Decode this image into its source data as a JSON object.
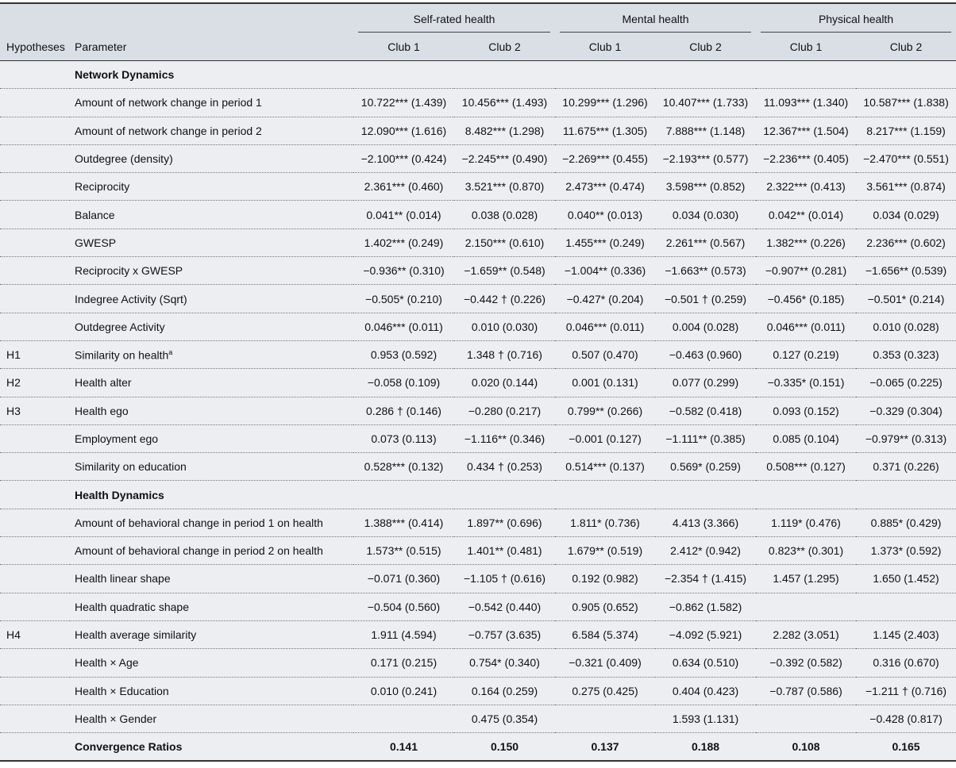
{
  "header": {
    "hypotheses": "Hypotheses",
    "parameter": "Parameter",
    "groups": [
      {
        "label": "Self-rated health",
        "clubs": [
          "Club 1",
          "Club 2"
        ]
      },
      {
        "label": "Mental health",
        "clubs": [
          "Club 1",
          "Club 2"
        ]
      },
      {
        "label": "Physical health",
        "clubs": [
          "Club 1",
          "Club 2"
        ]
      }
    ]
  },
  "table": {
    "rows": [
      {
        "section": "Network Dynamics"
      },
      {
        "hyp": null,
        "param": "Amount of network change in period 1",
        "values": [
          "10.722*** (1.439)",
          "10.456*** (1.493)",
          "10.299*** (1.296)",
          "10.407*** (1.733)",
          "11.093*** (1.340)",
          "10.587*** (1.838)"
        ]
      },
      {
        "hyp": null,
        "param": "Amount of network change in period 2",
        "values": [
          "12.090*** (1.616)",
          "8.482*** (1.298)",
          "11.675*** (1.305)",
          "7.888*** (1.148)",
          "12.367*** (1.504)",
          "8.217*** (1.159)"
        ]
      },
      {
        "hyp": null,
        "param": "Outdegree (density)",
        "values": [
          "−2.100*** (0.424)",
          "−2.245*** (0.490)",
          "−2.269*** (0.455)",
          "−2.193*** (0.577)",
          "−2.236*** (0.405)",
          "−2.470*** (0.551)"
        ]
      },
      {
        "hyp": null,
        "param": "Reciprocity",
        "values": [
          "2.361*** (0.460)",
          "3.521*** (0.870)",
          "2.473*** (0.474)",
          "3.598*** (0.852)",
          "2.322*** (0.413)",
          "3.561*** (0.874)"
        ]
      },
      {
        "hyp": null,
        "param": "Balance",
        "values": [
          "0.041** (0.014)",
          "0.038 (0.028)",
          "0.040** (0.013)",
          "0.034 (0.030)",
          "0.042** (0.014)",
          "0.034 (0.029)"
        ]
      },
      {
        "hyp": null,
        "param": "GWESP",
        "values": [
          "1.402*** (0.249)",
          "2.150*** (0.610)",
          "1.455*** (0.249)",
          "2.261*** (0.567)",
          "1.382*** (0.226)",
          "2.236*** (0.602)"
        ]
      },
      {
        "hyp": null,
        "param": "Reciprocity x GWESP",
        "values": [
          "−0.936** (0.310)",
          "−1.659** (0.548)",
          "−1.004** (0.336)",
          "−1.663** (0.573)",
          "−0.907** (0.281)",
          "−1.656** (0.539)"
        ]
      },
      {
        "hyp": null,
        "param": "Indegree Activity (Sqrt)",
        "values": [
          "−0.505* (0.210)",
          "−0.442 † (0.226)",
          "−0.427* (0.204)",
          "−0.501 † (0.259)",
          "−0.456* (0.185)",
          "−0.501* (0.214)"
        ]
      },
      {
        "hyp": null,
        "param": "Outdegree Activity",
        "values": [
          "0.046*** (0.011)",
          "0.010 (0.030)",
          "0.046*** (0.011)",
          "0.004 (0.028)",
          "0.046*** (0.011)",
          "0.010 (0.028)"
        ]
      },
      {
        "hyp": "H1",
        "param": "Similarity on health",
        "sup": "a",
        "values": [
          "0.953 (0.592)",
          "1.348 † (0.716)",
          "0.507 (0.470)",
          "−0.463 (0.960)",
          "0.127 (0.219)",
          "0.353 (0.323)"
        ]
      },
      {
        "hyp": "H2",
        "param": "Health alter",
        "values": [
          "−0.058 (0.109)",
          "0.020 (0.144)",
          "0.001 (0.131)",
          "0.077 (0.299)",
          "−0.335* (0.151)",
          "−0.065 (0.225)"
        ]
      },
      {
        "hyp": "H3",
        "param": "Health ego",
        "values": [
          "0.286 † (0.146)",
          "−0.280 (0.217)",
          "0.799** (0.266)",
          "−0.582 (0.418)",
          "0.093 (0.152)",
          "−0.329 (0.304)"
        ]
      },
      {
        "hyp": null,
        "param": "Employment ego",
        "values": [
          "0.073 (0.113)",
          "−1.116** (0.346)",
          "−0.001 (0.127)",
          "−1.111** (0.385)",
          "0.085 (0.104)",
          "−0.979** (0.313)"
        ]
      },
      {
        "hyp": null,
        "param": "Similarity on education",
        "values": [
          "0.528*** (0.132)",
          "0.434 † (0.253)",
          "0.514*** (0.137)",
          "0.569* (0.259)",
          "0.508*** (0.127)",
          "0.371 (0.226)"
        ]
      },
      {
        "section": "Health Dynamics"
      },
      {
        "hyp": null,
        "param": "Amount of behavioral change in period 1 on health",
        "values": [
          "1.388*** (0.414)",
          "1.897** (0.696)",
          "1.811* (0.736)",
          "4.413 (3.366)",
          "1.119* (0.476)",
          "0.885* (0.429)"
        ]
      },
      {
        "hyp": null,
        "param": "Amount of behavioral change in period 2 on health",
        "values": [
          "1.573** (0.515)",
          "1.401** (0.481)",
          "1.679** (0.519)",
          "2.412* (0.942)",
          "0.823** (0.301)",
          "1.373* (0.592)"
        ]
      },
      {
        "hyp": null,
        "param": "Health linear shape",
        "values": [
          "−0.071 (0.360)",
          "−1.105 † (0.616)",
          "0.192 (0.982)",
          "−2.354 † (1.415)",
          "1.457 (1.295)",
          "1.650 (1.452)"
        ]
      },
      {
        "hyp": null,
        "param": "Health quadratic shape",
        "values": [
          "−0.504 (0.560)",
          "−0.542 (0.440)",
          "0.905 (0.652)",
          "−0.862 (1.582)",
          null,
          null
        ]
      },
      {
        "hyp": "H4",
        "param": "Health average similarity",
        "values": [
          "1.911 (4.594)",
          "−0.757 (3.635)",
          "6.584 (5.374)",
          "−4.092 (5.921)",
          "2.282 (3.051)",
          "1.145 (2.403)"
        ]
      },
      {
        "hyp": null,
        "param": "Health × Age",
        "values": [
          "0.171 (0.215)",
          "0.754* (0.340)",
          "−0.321 (0.409)",
          "0.634 (0.510)",
          "−0.392 (0.582)",
          "0.316 (0.670)"
        ]
      },
      {
        "hyp": null,
        "param": "Health × Education",
        "values": [
          "0.010 (0.241)",
          "0.164 (0.259)",
          "0.275 (0.425)",
          "0.404 (0.423)",
          "−0.787 (0.586)",
          "−1.211 † (0.716)"
        ]
      },
      {
        "hyp": null,
        "param": "Health × Gender",
        "values": [
          null,
          "0.475 (0.354)",
          null,
          "1.593 (1.131)",
          null,
          "−0.428 (0.817)"
        ]
      },
      {
        "hyp": null,
        "param": "Convergence Ratios",
        "bold": true,
        "values": [
          "0.141",
          "0.150",
          "0.137",
          "0.188",
          "0.108",
          "0.165"
        ]
      }
    ]
  }
}
